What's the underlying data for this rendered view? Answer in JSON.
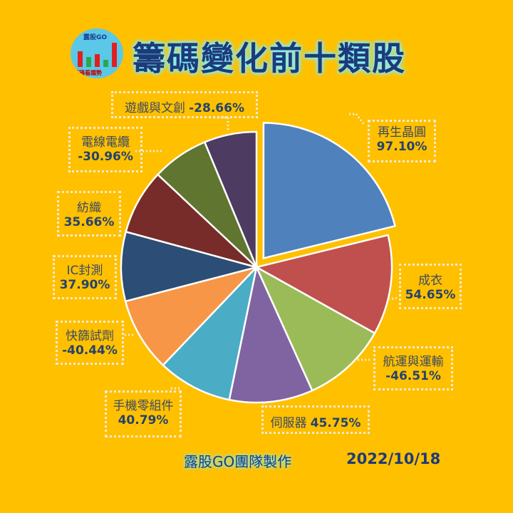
{
  "header": {
    "title": "籌碼變化前十類股",
    "logo_text": "露股GO",
    "logo_caption": "籌碼看趨勢"
  },
  "chart_data": {
    "type": "pie",
    "title": "籌碼變化前十類股",
    "note": "Slice sizes proportional to absolute percentage change; first slice exploded",
    "categories": [
      "再生晶圓",
      "成衣",
      "航運與運輸",
      "伺服器",
      "手機零組件",
      "快篩試劑",
      "IC封測",
      "紡織",
      "電線電纜",
      "遊戲與文創"
    ],
    "values": [
      97.1,
      54.65,
      -46.51,
      45.75,
      40.79,
      -40.44,
      37.9,
      35.66,
      -30.96,
      -28.66
    ],
    "value_labels": [
      "97.10%",
      "54.65%",
      "-46.51%",
      "45.75%",
      "40.79%",
      "-40.44%",
      "37.90%",
      "35.66%",
      "-30.96%",
      "-28.66%"
    ],
    "colors": [
      "#4F81BD",
      "#C0504D",
      "#9BBB59",
      "#8064A2",
      "#4BACC6",
      "#F79646",
      "#2C4D75",
      "#772C2A",
      "#5F7530",
      "#4D3B62"
    ],
    "legend": "none (data labels)"
  },
  "labels": [
    {
      "name": "再生晶圓",
      "value": "97.10%"
    },
    {
      "name": "成衣",
      "value": "54.65%"
    },
    {
      "name": "航運與運輸",
      "value": "-46.51%"
    },
    {
      "name": "伺服器",
      "value": "45.75%"
    },
    {
      "name": "手機零組件",
      "value": "40.79%"
    },
    {
      "name": "快篩試劑",
      "value": "-40.44%"
    },
    {
      "name": "IC封測",
      "value": "37.90%"
    },
    {
      "name": "紡織",
      "value": "35.66%"
    },
    {
      "name": "電線電纜",
      "value": "-30.96%"
    },
    {
      "name": "遊戲與文創",
      "value": "-28.66%"
    }
  ],
  "footer": {
    "credit": "露股GO團隊製作",
    "date": "2022/10/18"
  }
}
